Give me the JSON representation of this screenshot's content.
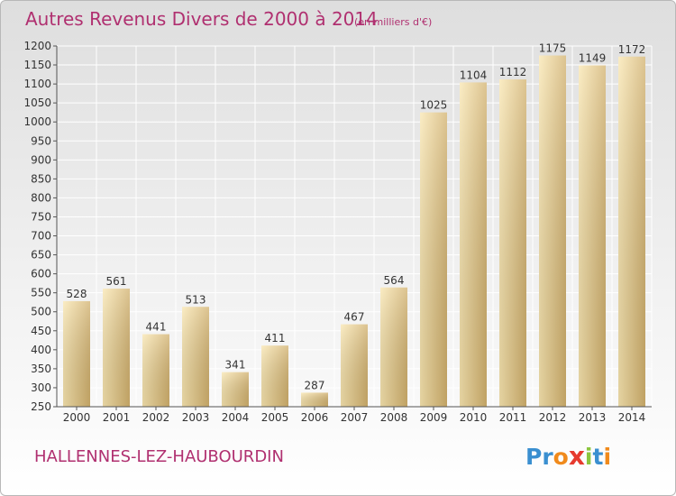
{
  "title": "Autres Revenus Divers de 2000 à 2014",
  "unit_note": "(en milliers d'€)",
  "commune": "HALLENNES-LEZ-HAUBOURDIN",
  "logo": {
    "letters": [
      {
        "char": "P",
        "color": "#3a8fd0"
      },
      {
        "char": "r",
        "color": "#3a8fd0"
      },
      {
        "char": "o",
        "color": "#f08a1c"
      },
      {
        "char": "x",
        "color": "#e63a2e"
      },
      {
        "char": "i",
        "color": "#8cc63f"
      },
      {
        "char": "t",
        "color": "#3a8fd0"
      },
      {
        "char": "i",
        "color": "#f08a1c"
      }
    ]
  },
  "colors": {
    "title": "#b03070",
    "bar_light": "#f9e6b0",
    "bar_dark": "#cfae68",
    "grid": "#ffffff",
    "axis": "#555555"
  },
  "chart_data": {
    "type": "bar",
    "title": "Autres Revenus Divers de 2000 à 2014",
    "subtitle": "(en milliers d'€)",
    "categories": [
      "2000",
      "2001",
      "2002",
      "2003",
      "2004",
      "2005",
      "2006",
      "2007",
      "2008",
      "2009",
      "2010",
      "2011",
      "2012",
      "2013",
      "2014"
    ],
    "values": [
      528,
      561,
      441,
      513,
      341,
      411,
      287,
      467,
      564,
      1025,
      1104,
      1112,
      1175,
      1149,
      1172
    ],
    "ylim": [
      250,
      1200
    ],
    "ytick_step": 50,
    "grid": true,
    "data_labels": true,
    "legend": "none"
  }
}
